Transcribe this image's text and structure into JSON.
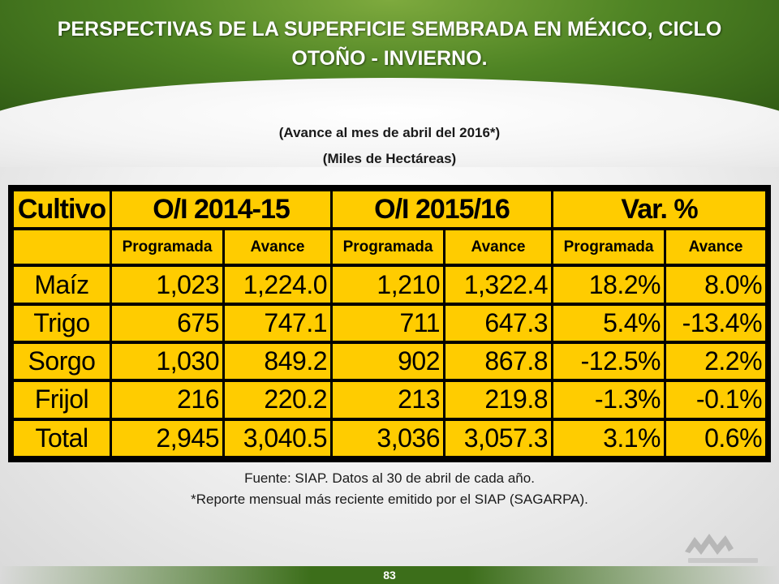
{
  "title": "PERSPECTIVAS DE LA SUPERFICIE SEMBRADA EN MÉXICO, CICLO OTOÑO - INVIERNO.",
  "subtitle_1": "(Avance al mes de abril del 2016*)",
  "subtitle_2": "(Miles de Hectáreas)",
  "table": {
    "header_groups": [
      "Cultivo",
      "O/I 2014-15",
      "O/I 2015/16",
      "Var. %"
    ],
    "sub_headers": [
      "",
      "Programada",
      "Avance",
      "Programada",
      "Avance",
      "Programada",
      "Avance"
    ],
    "rows": [
      {
        "name": "Maíz",
        "values": [
          "1,023",
          "1,224.0",
          "1,210",
          "1,322.4",
          "18.2%",
          "8.0%"
        ]
      },
      {
        "name": "Trigo",
        "values": [
          "675",
          "747.1",
          "711",
          "647.3",
          "5.4%",
          "-13.4%"
        ]
      },
      {
        "name": "Sorgo",
        "values": [
          "1,030",
          "849.2",
          "902",
          "867.8",
          "-12.5%",
          "2.2%"
        ]
      },
      {
        "name": "Frijol",
        "values": [
          "216",
          "220.2",
          "213",
          "219.8",
          "-1.3%",
          "-0.1%"
        ]
      },
      {
        "name": "Total",
        "values": [
          "2,945",
          "3,040.5",
          "3,036",
          "3,057.3",
          "3.1%",
          "0.6%"
        ]
      }
    ]
  },
  "footer_1": "Fuente: SIAP. Datos al 30 de abril de cada año.",
  "footer_2": "*Reporte mensual más reciente emitido por el SIAP (SAGARPA).",
  "logo": {
    "icon": "consejo-nacional-agropecuario-logo",
    "text": "Consejo Nacional Agropecuario"
  },
  "page_number": "83",
  "colors": {
    "accent": "#ffcc00",
    "banner": "#4f8424"
  }
}
